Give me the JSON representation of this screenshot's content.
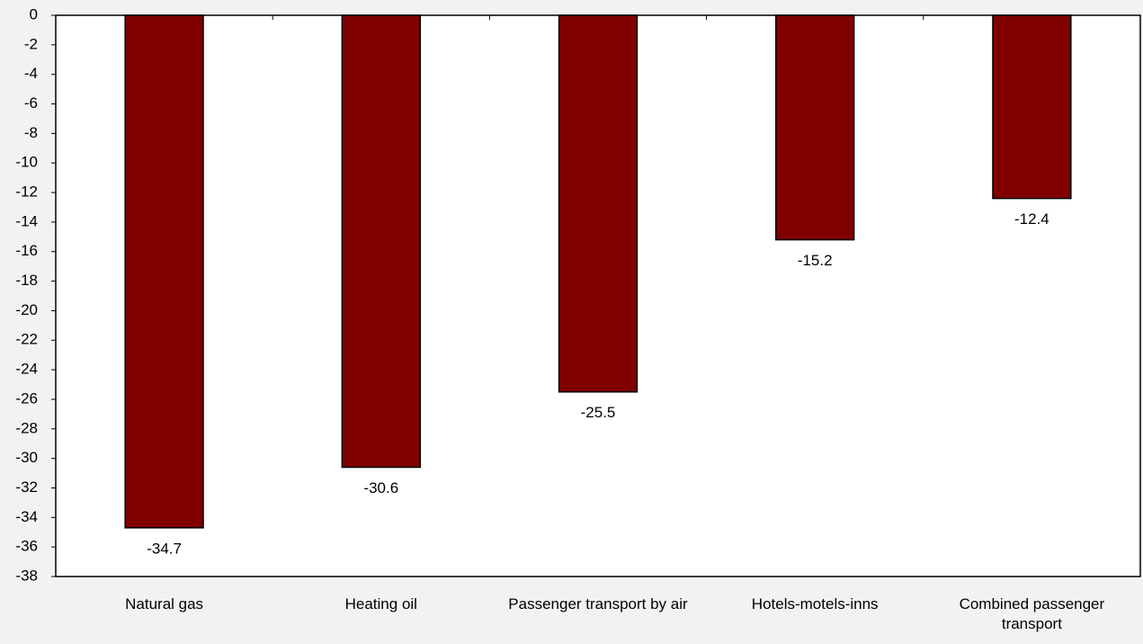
{
  "chart_data": {
    "type": "bar",
    "categories": [
      "Natural gas",
      "Heating oil",
      "Passenger transport by air",
      "Hotels-motels-inns",
      "Combined passenger transport"
    ],
    "values": [
      -34.7,
      -30.6,
      -25.5,
      -15.2,
      -12.4
    ],
    "color": "#800000",
    "ylim": [
      -38,
      0
    ],
    "yticks": [
      0,
      -2,
      -4,
      -6,
      -8,
      -10,
      -12,
      -14,
      -16,
      -18,
      -20,
      -22,
      -24,
      -26,
      -28,
      -30,
      -32,
      -34,
      -36,
      -38
    ],
    "grid": false
  }
}
